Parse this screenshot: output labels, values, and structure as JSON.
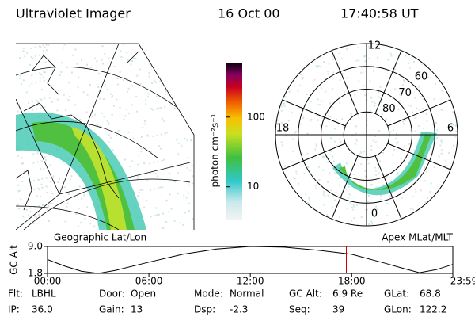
{
  "header": {
    "title": "Ultraviolet Imager",
    "date": "16 Oct 00",
    "time": "17:40:58 UT"
  },
  "colorbar": {
    "label": "photon cm⁻²s⁻¹",
    "log": true,
    "lim": [
      3.3,
      590
    ],
    "ticks": [
      10,
      100
    ]
  },
  "polar": {
    "rlim": [
      90,
      50
    ],
    "mlt_ticks": [
      0,
      6,
      12,
      18
    ],
    "lat_ticks": [
      60,
      70,
      80
    ]
  },
  "orbit": {
    "left_label": "Geographic Lat/Lon",
    "right_label": "Apex MLat/MLT",
    "ylabel": "GC Alt",
    "xlim": [
      0,
      23.983
    ],
    "ylim": [
      1.8,
      9
    ],
    "yticks": [
      1.8,
      {
        "value": 9,
        "label": "9.0"
      }
    ],
    "xticks": [
      {
        "value": 0,
        "label": "00:00"
      },
      {
        "value": 6,
        "label": "06:00"
      },
      {
        "value": 12,
        "label": "12:00"
      },
      {
        "value": 18,
        "label": "18:00"
      },
      {
        "value": 23.983,
        "label": "23:59"
      }
    ],
    "x": [
      0,
      1,
      2,
      3,
      4,
      6,
      8,
      10,
      12,
      14,
      16,
      18,
      20,
      21,
      22,
      23,
      23.983
    ],
    "values": [
      5.5,
      3.8,
      2.4,
      1.8,
      2.6,
      4.8,
      6.9,
      8.3,
      9,
      8.8,
      8,
      6.9,
      4.5,
      3.2,
      2,
      2.8,
      4.2
    ],
    "marker_x": 17.683,
    "marker_color": "#cc0000",
    "line_color": "#000000"
  },
  "fields": [
    [
      {
        "label": "Flt:",
        "value": "LBHL"
      },
      {
        "label": "Door:",
        "value": "Open"
      },
      {
        "label": "Mode:",
        "value": "Normal"
      },
      {
        "label": "GC Alt:",
        "value": "6.9 Re"
      },
      {
        "label": "GLat:",
        "value": "68.8"
      }
    ],
    [
      {
        "label": "IP:",
        "value": "36.0"
      },
      {
        "label": "Gain:",
        "value": "13"
      },
      {
        "label": "Dsp:",
        "value": "-2.3"
      },
      {
        "label": "Seq:",
        "value": "39"
      },
      {
        "label": "GLon:",
        "value": "122.2"
      }
    ]
  ]
}
